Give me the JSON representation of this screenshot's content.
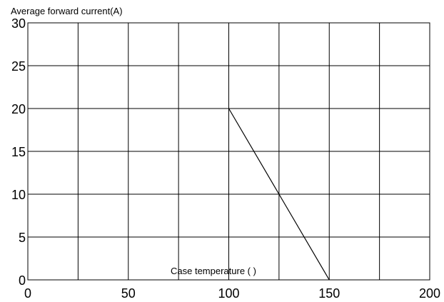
{
  "chart_data": {
    "type": "line",
    "title": "",
    "ylabel": "Average forward current(A)",
    "xlabel": "Case temperature (   )",
    "xlim": [
      0,
      200
    ],
    "ylim": [
      0,
      30
    ],
    "x_ticks": [
      "0",
      "50",
      "100",
      "150",
      "200"
    ],
    "y_ticks": [
      "0",
      "5",
      "10",
      "15",
      "20",
      "25",
      "30"
    ],
    "grid": true,
    "series": [
      {
        "x": [
          100,
          125,
          150
        ],
        "y": [
          20,
          10,
          0
        ]
      }
    ],
    "colors": {
      "line": "#000000",
      "grid": "#000000"
    }
  }
}
